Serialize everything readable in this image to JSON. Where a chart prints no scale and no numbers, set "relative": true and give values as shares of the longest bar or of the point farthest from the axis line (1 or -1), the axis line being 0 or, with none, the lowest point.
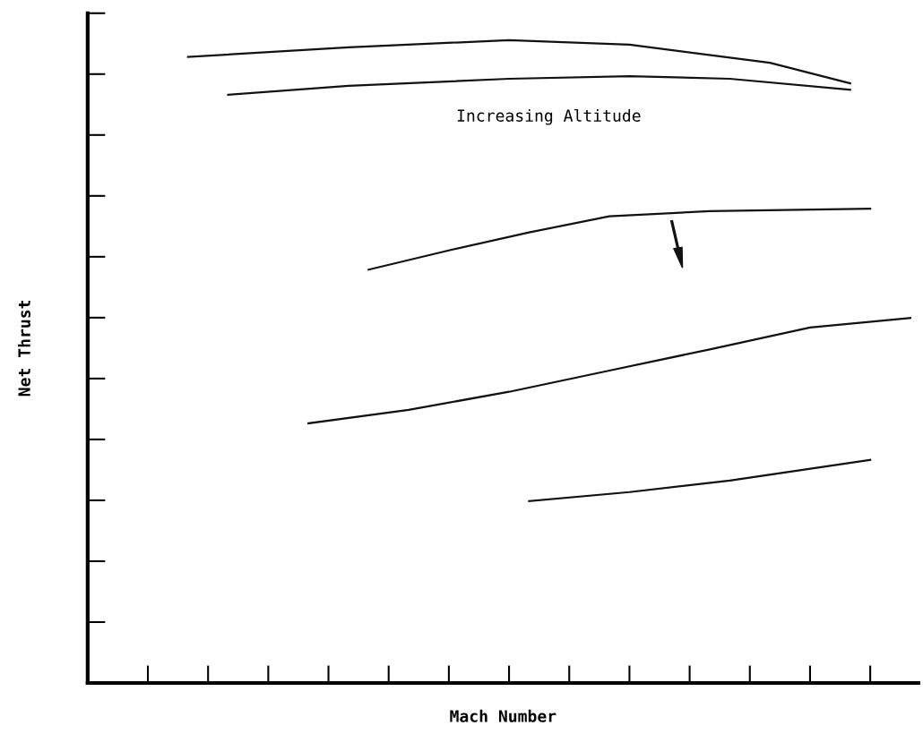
{
  "chart_data": {
    "type": "line",
    "relative": true,
    "xlabel": "Mach Number",
    "ylabel": "Net Thrust",
    "tick_labels": false,
    "grid": false,
    "legend": false,
    "annotations": [
      "Increasing Altitude"
    ],
    "categories": [
      null,
      null,
      null,
      null,
      null,
      null,
      null,
      null,
      null,
      null,
      null,
      null,
      null,
      null,
      null,
      null,
      null,
      null,
      null,
      null,
      null,
      null,
      null,
      null,
      null,
      null,
      null,
      null,
      null,
      null,
      null,
      null,
      null,
      null,
      null,
      null,
      null,
      null,
      null,
      null,
      null,
      null
    ],
    "series": [
      {
        "color": "#111111",
        "values": [
          null,
          null,
          null,
          null,
          null,
          0.974,
          null,
          null,
          null,
          null,
          null,
          null,
          null,
          0.989,
          null,
          null,
          null,
          null,
          null,
          null,
          null,
          1.0,
          null,
          null,
          null,
          null,
          null,
          0.993,
          null,
          null,
          null,
          null,
          null,
          null,
          0.965,
          null,
          null,
          null,
          0.933,
          null,
          null,
          null
        ]
      },
      {
        "color": "#111111",
        "values": [
          null,
          null,
          null,
          null,
          null,
          null,
          null,
          0.915,
          null,
          null,
          null,
          null,
          null,
          0.929,
          null,
          null,
          null,
          null,
          null,
          null,
          null,
          0.94,
          null,
          null,
          null,
          null,
          null,
          0.944,
          null,
          null,
          null,
          null,
          0.94,
          null,
          null,
          null,
          null,
          null,
          0.923,
          null,
          null,
          null
        ]
      },
      {
        "color": "#111111",
        "values": [
          null,
          null,
          null,
          null,
          null,
          null,
          null,
          null,
          null,
          null,
          null,
          null,
          null,
          null,
          0.643,
          null,
          null,
          null,
          0.673,
          null,
          null,
          null,
          0.701,
          null,
          null,
          null,
          0.726,
          null,
          null,
          null,
          null,
          0.734,
          null,
          null,
          null,
          null,
          null,
          null,
          null,
          0.738,
          null,
          null
        ]
      },
      {
        "color": "#111111",
        "values": [
          null,
          null,
          null,
          null,
          null,
          null,
          null,
          null,
          null,
          null,
          null,
          0.404,
          null,
          null,
          null,
          null,
          0.425,
          null,
          null,
          null,
          null,
          0.453,
          null,
          null,
          null,
          null,
          0.486,
          null,
          null,
          null,
          null,
          0.519,
          null,
          null,
          null,
          null,
          0.553,
          null,
          null,
          null,
          null,
          0.568
        ]
      },
      {
        "color": "#111111",
        "values": [
          null,
          null,
          null,
          null,
          null,
          null,
          null,
          null,
          null,
          null,
          null,
          null,
          null,
          null,
          null,
          null,
          null,
          null,
          null,
          null,
          null,
          null,
          0.283,
          null,
          null,
          null,
          null,
          0.297,
          null,
          null,
          null,
          null,
          0.315,
          null,
          null,
          null,
          null,
          null,
          null,
          0.347,
          null,
          null
        ]
      }
    ]
  }
}
